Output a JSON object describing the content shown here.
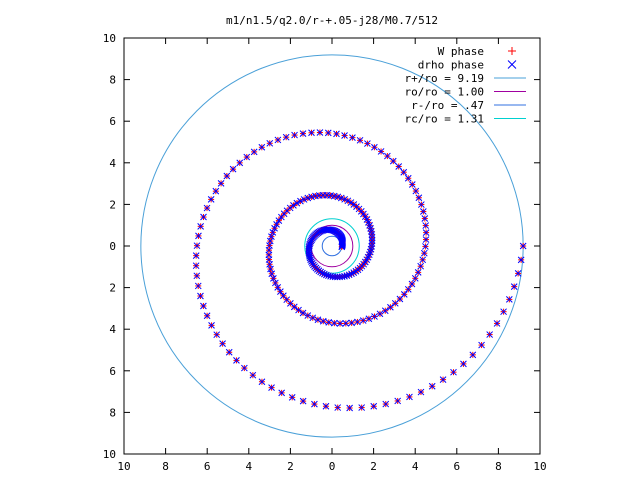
{
  "chart_data": {
    "type": "scatter",
    "title": "m1/n1.5/q2.0/r-+.05-j28/M0.7/512",
    "xlim": [
      -10,
      10
    ],
    "ylim": [
      -10,
      10
    ],
    "xticks": [
      -10,
      -8,
      -6,
      -4,
      -2,
      0,
      2,
      4,
      6,
      8,
      10
    ],
    "yticks": [
      -10,
      -8,
      -6,
      -4,
      -2,
      0,
      2,
      4,
      6,
      8,
      10
    ],
    "xtick_labels": [
      "10",
      "8",
      "6",
      "4",
      "2",
      "0",
      "2",
      "4",
      "6",
      "8",
      "10"
    ],
    "ytick_labels": [
      "10",
      "8",
      "6",
      "4",
      "2",
      "0",
      "2",
      "4",
      "6",
      "8",
      "10"
    ],
    "grid": false,
    "legend_position": "top-right",
    "series": [
      {
        "name": "W phase",
        "kind": "points",
        "marker": "plus",
        "color": "#ff0000",
        "spiral": {
          "r_inner": 0.47,
          "r_outer": 9.19,
          "b": 0.095,
          "theta_start_deg": -5,
          "theta_end_deg": 1080,
          "samples": 260
        }
      },
      {
        "name": "drho phase",
        "kind": "points",
        "marker": "cross",
        "color": "#0000ff",
        "spiral": {
          "r_inner": 0.47,
          "r_outer": 9.19,
          "b": 0.095,
          "theta_start_deg": -5,
          "theta_end_deg": 1080,
          "samples": 260
        }
      },
      {
        "name": "r+/ro = 9.19",
        "kind": "circle",
        "radius": 9.19,
        "color": "#4aa0d8"
      },
      {
        "name": "ro/ro = 1.00",
        "kind": "circle",
        "radius": 1.0,
        "color": "#a000a0"
      },
      {
        "name": "r-/ro = .47",
        "kind": "circle",
        "radius": 0.47,
        "color": "#3070e0"
      },
      {
        "name": "rc/ro = 1.31",
        "kind": "circle",
        "radius": 1.31,
        "color": "#00d0d0"
      }
    ]
  }
}
